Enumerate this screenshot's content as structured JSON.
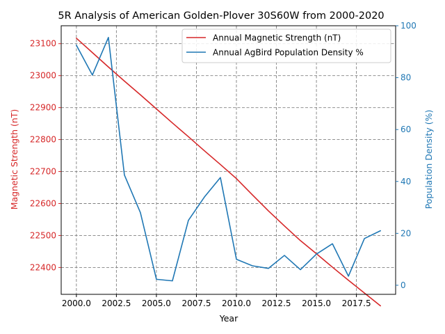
{
  "chart_data": {
    "type": "line",
    "title": "5R Analysis of American Golden-Plover 30S60W from 2000-2020",
    "xlabel": "Year",
    "ylabel_left": "Magnetic Strength (nT)",
    "ylabel_right": "Population Density (%)",
    "x": [
      2000,
      2001,
      2002,
      2003,
      2004,
      2005,
      2006,
      2007,
      2008,
      2009,
      2010,
      2011,
      2012,
      2013,
      2014,
      2015,
      2016,
      2017,
      2018,
      2019
    ],
    "xlim": [
      1999.05,
      2019.95
    ],
    "x_ticks": [
      2000,
      2002.5,
      2005,
      2007.5,
      2010,
      2012.5,
      2015,
      2017.5
    ],
    "x_tick_labels": [
      "2000.0",
      "2002.5",
      "2005.0",
      "2007.5",
      "2010.0",
      "2012.5",
      "2015.0",
      "2017.5"
    ],
    "ylim_left": [
      22316,
      23156
    ],
    "y_ticks_left": [
      22400,
      22500,
      22600,
      22700,
      22800,
      22900,
      23000,
      23100
    ],
    "y_tick_labels_left": [
      "22400",
      "22500",
      "22600",
      "22700",
      "22800",
      "22900",
      "23000",
      "23100"
    ],
    "ylim_right": [
      -3.5,
      100
    ],
    "y_ticks_right": [
      0,
      20,
      40,
      60,
      80,
      100
    ],
    "y_tick_labels_right": [
      "0",
      "20",
      "40",
      "60",
      "80",
      "100"
    ],
    "grid": true,
    "legend_position": "top-right",
    "series": [
      {
        "name": "Annual Magnetic Strength (nT)",
        "axis": "left",
        "color": "#d62728",
        "values": [
          23117,
          23072,
          23027,
          22983,
          22940,
          22896,
          22852,
          22809,
          22765,
          22722,
          22678,
          22627,
          22577,
          22530,
          22484,
          22443,
          22401,
          22360,
          22320,
          22280
        ]
      },
      {
        "name": "Annual AgBird Population Density %",
        "axis": "right",
        "color": "#1f77b4",
        "values": [
          92.5,
          81,
          95.5,
          42.5,
          28,
          2.3,
          1.7,
          25,
          34,
          41.5,
          10,
          7.5,
          6.5,
          11.5,
          6,
          12,
          16,
          3.5,
          18,
          21
        ]
      }
    ]
  }
}
